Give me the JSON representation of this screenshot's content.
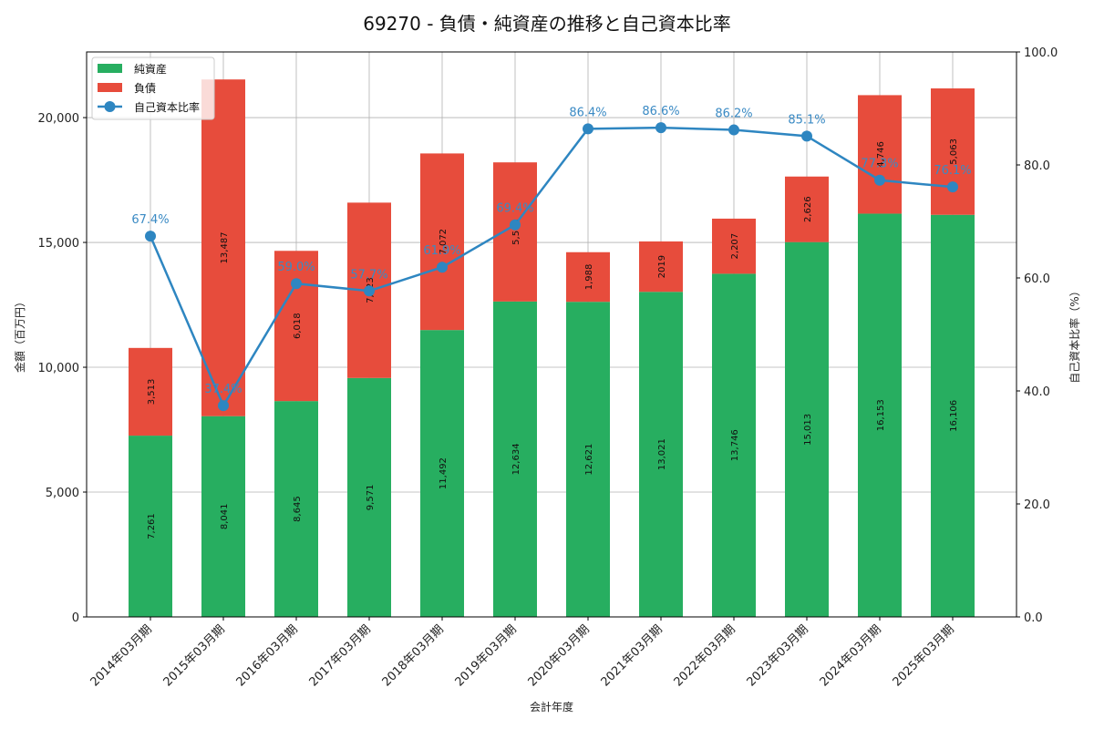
{
  "chart_data": {
    "type": "bar",
    "subtype": "stacked-bar-with-line",
    "title": "69270 - 負債・純資産の推移と自己資本比率",
    "xlabel": "会計年度",
    "ylabel": "金額（百万円）",
    "y2label": "自己資本比率（%）",
    "ylim": [
      0,
      22630
    ],
    "y2lim": [
      0,
      100
    ],
    "yticks": [
      "0",
      "5,000",
      "10,000",
      "15,000",
      "20,000"
    ],
    "y2ticks": [
      "0.0",
      "20.0",
      "40.0",
      "60.0",
      "80.0",
      "100.0"
    ],
    "grid": true,
    "legend_position": "upper left",
    "categories": [
      "2014年03月期",
      "2015年03月期",
      "2016年03月期",
      "2017年03月期",
      "2018年03月期",
      "2019年03月期",
      "2020年03月期",
      "2021年03月期",
      "2022年03月期",
      "2023年03月期",
      "2024年03月期",
      "2025年03月期"
    ],
    "series": [
      {
        "name": "純資産",
        "type": "bar",
        "stack": true,
        "color": "#27ae60",
        "values": [
          7261,
          8041,
          8645,
          9571,
          11492,
          12634,
          12621,
          13021,
          13746,
          15013,
          16153,
          16106
        ],
        "labels": [
          "7,261",
          "8,041",
          "8,645",
          "9,571",
          "11,492",
          "12,634",
          "12,621",
          "13,021",
          "13,746",
          "15,013",
          "16,153",
          "16,106"
        ]
      },
      {
        "name": "負債",
        "type": "bar",
        "stack": true,
        "color": "#e74c3c",
        "values": [
          3513,
          13487,
          6018,
          7023,
          7072,
          5573,
          1988,
          2019,
          2207,
          2626,
          4746,
          5063
        ],
        "labels": [
          "3,513",
          "13,487",
          "6,018",
          "7,023",
          "7,072",
          "5,573",
          "1,988",
          "2019",
          "2,207",
          "2,626",
          "4,746",
          "5,063"
        ]
      },
      {
        "name": "自己資本比率",
        "type": "line",
        "axis": "right",
        "color": "#2e86c1",
        "values": [
          67.4,
          37.4,
          59.0,
          57.7,
          61.9,
          69.4,
          86.4,
          86.6,
          86.2,
          85.1,
          77.3,
          76.1
        ],
        "labels": [
          "67.4%",
          "37.4%",
          "59.0%",
          "57.7%",
          "61.9%",
          "69.4%",
          "86.4%",
          "86.6%",
          "86.2%",
          "85.1%",
          "77.3%",
          "76.1%"
        ]
      }
    ]
  }
}
